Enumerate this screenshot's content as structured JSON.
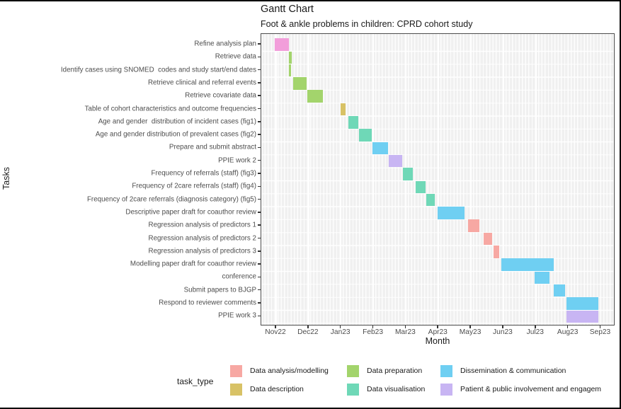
{
  "chart_data": {
    "type": "gantt",
    "title": "Gantt Chart",
    "subtitle": "Foot & ankle problems in children: CPRD cohort study",
    "xlabel": "Month",
    "ylabel": "Tasks",
    "legend_title": "task_type",
    "x_ticks": [
      "Nov22",
      "Dec22",
      "Jan23",
      "Feb23",
      "Mar23",
      "Apr23",
      "May23",
      "Jun23",
      "Jul23",
      "Aug23",
      "Sep23"
    ],
    "x_axis_range_months": [
      0,
      10
    ],
    "grid": "light panel with white month gridlines and per-task row lines",
    "legend_position": "bottom",
    "task_type_colors": {
      "data_analysis_modelling": "#F7A8A3",
      "data_description": "#D8C266",
      "data_preparation": "#A3D46C",
      "data_visualisation": "#6FD8B7",
      "dissemination_communication": "#6FCFF2",
      "ppie": "#C8B5F3",
      "unlabelled_pink": "#F29EDA"
    },
    "legend": [
      {
        "label": "Data analysis/modelling",
        "color_key": "data_analysis_modelling"
      },
      {
        "label": "Data description",
        "color_key": "data_description"
      },
      {
        "label": "Data preparation",
        "color_key": "data_preparation"
      },
      {
        "label": "Data visualisation",
        "color_key": "data_visualisation"
      },
      {
        "label": "Dissemination & communication",
        "color_key": "dissemination_communication"
      },
      {
        "label": "Patient & public involvement and engagem",
        "color_key": "ppie"
      }
    ],
    "tasks": [
      {
        "label": "Refine analysis plan",
        "color_key": "unlabelled_pink",
        "start_month": -0.05,
        "end_month": 0.4
      },
      {
        "label": "Retrieve data",
        "color_key": "data_preparation",
        "start_month": 0.4,
        "end_month": 0.47
      },
      {
        "label": "Identify cases using SNOMED  codes and study start/end dates",
        "color_key": "data_preparation",
        "start_month": 0.4,
        "end_month": 0.45
      },
      {
        "label": "Retrieve clinical and referral events",
        "color_key": "data_preparation",
        "start_month": 0.53,
        "end_month": 0.93
      },
      {
        "label": "Retrieve covariate data",
        "color_key": "data_preparation",
        "start_month": 0.97,
        "end_month": 1.44
      },
      {
        "label": "Table of cohort characteristics and outcome frequencies",
        "color_key": "data_description",
        "start_month": 1.98,
        "end_month": 2.14
      },
      {
        "label": "Age and gender  distribution of incident cases (fig1)",
        "color_key": "data_visualisation",
        "start_month": 2.22,
        "end_month": 2.52
      },
      {
        "label": "Age and gender distribution of prevalent cases (fig2)",
        "color_key": "data_visualisation",
        "start_month": 2.55,
        "end_month": 2.94
      },
      {
        "label": "Prepare and submit abstract",
        "color_key": "dissemination_communication",
        "start_month": 2.97,
        "end_month": 3.45
      },
      {
        "label": "PPIE work 2",
        "color_key": "ppie",
        "start_month": 3.47,
        "end_month": 3.88
      },
      {
        "label": "Frequency of referrals (staff) (fig3)",
        "color_key": "data_visualisation",
        "start_month": 3.9,
        "end_month": 4.2
      },
      {
        "label": "Frequency of 2care referrals (staff) (fig4)",
        "color_key": "data_visualisation",
        "start_month": 4.3,
        "end_month": 4.6
      },
      {
        "label": "Frequency of 2care referrals (diagnosis category) (fig5)",
        "color_key": "data_visualisation",
        "start_month": 4.63,
        "end_month": 4.89
      },
      {
        "label": "Descriptive paper draft for coauthor review",
        "color_key": "dissemination_communication",
        "start_month": 4.98,
        "end_month": 5.81
      },
      {
        "label": "Regression analysis of predictors 1",
        "color_key": "data_analysis_modelling",
        "start_month": 5.9,
        "end_month": 6.27
      },
      {
        "label": "Regression analysis of predictors 2",
        "color_key": "data_analysis_modelling",
        "start_month": 6.38,
        "end_month": 6.66
      },
      {
        "label": "Regression analysis of predictors 3",
        "color_key": "data_analysis_modelling",
        "start_month": 6.7,
        "end_month": 6.86
      },
      {
        "label": "Modelling paper draft for coauthor review",
        "color_key": "dissemination_communication",
        "start_month": 6.93,
        "end_month": 8.55
      },
      {
        "label": "conference",
        "color_key": "dissemination_communication",
        "start_month": 7.97,
        "end_month": 8.42
      },
      {
        "label": "Submit papers to BJGP",
        "color_key": "dissemination_communication",
        "start_month": 8.56,
        "end_month": 8.89
      },
      {
        "label": "Respond to reviewer comments",
        "color_key": "dissemination_communication",
        "start_month": 8.94,
        "end_month": 9.93
      },
      {
        "label": "PPIE work 3",
        "color_key": "ppie",
        "start_month": 8.94,
        "end_month": 9.93
      }
    ]
  }
}
